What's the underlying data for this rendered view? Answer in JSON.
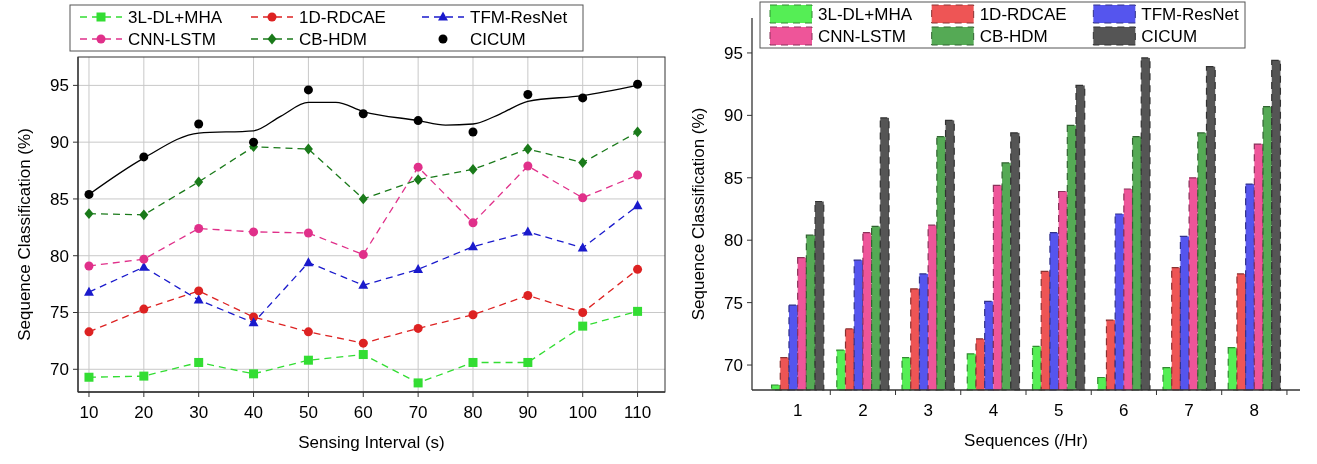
{
  "chart_data": [
    {
      "type": "line",
      "xlabel": "Sensing Interval (s)",
      "ylabel": "Sequence Classification (%)",
      "x": [
        10,
        20,
        30,
        40,
        50,
        60,
        70,
        80,
        90,
        100,
        110
      ],
      "xlim": [
        8,
        115
      ],
      "xticks": [
        10,
        20,
        30,
        40,
        50,
        60,
        70,
        80,
        90,
        100,
        110
      ],
      "ylim": [
        68,
        97.5
      ],
      "yticks": [
        70,
        75,
        80,
        85,
        90,
        95
      ],
      "grid": true,
      "legend": "top",
      "series": [
        {
          "name": "3L-DL+MHA",
          "color": "#33dd33",
          "marker": "square",
          "line_style": "dashed",
          "values": [
            69.3,
            69.4,
            70.6,
            69.6,
            70.8,
            71.3,
            68.8,
            70.6,
            70.6,
            73.8,
            75.1
          ]
        },
        {
          "name": "1D-RDCAE",
          "color": "#dd2222",
          "marker": "circle",
          "line_style": "dashed",
          "values": [
            73.3,
            75.3,
            76.9,
            74.6,
            73.3,
            72.3,
            73.6,
            74.8,
            76.5,
            75.0,
            78.8
          ]
        },
        {
          "name": "TFM-ResNet",
          "color": "#1a1acc",
          "marker": "triangle",
          "line_style": "dashed",
          "values": [
            76.8,
            79.0,
            76.1,
            74.1,
            79.4,
            77.4,
            78.8,
            80.8,
            82.1,
            80.7,
            84.4
          ]
        },
        {
          "name": "CNN-LSTM",
          "color": "#e0308a",
          "marker": "circle",
          "line_style": "dashed",
          "values": [
            79.1,
            79.7,
            82.4,
            82.1,
            82.0,
            80.1,
            87.8,
            82.9,
            87.9,
            85.1,
            87.1
          ]
        },
        {
          "name": "CB-HDM",
          "color": "#1a7a1a",
          "marker": "diamond",
          "line_style": "dashed",
          "values": [
            83.7,
            83.6,
            86.5,
            89.6,
            89.4,
            85.0,
            86.7,
            87.6,
            89.4,
            88.2,
            90.9
          ]
        },
        {
          "name": "CICUM",
          "type": "scatter",
          "color": "#000000",
          "marker": "circle",
          "values": [
            85.4,
            88.7,
            91.6,
            90.0,
            94.6,
            92.5,
            91.9,
            90.9,
            94.2,
            93.9,
            95.1
          ]
        },
        {
          "type": "line",
          "color": "#000000",
          "marker": "none",
          "line_style": "solid",
          "x": [
            10,
            20,
            30,
            40,
            45,
            50,
            55,
            60,
            70,
            75,
            80,
            85,
            90,
            100,
            110
          ],
          "values": [
            85.4,
            88.6,
            90.8,
            91.0,
            92.3,
            93.5,
            93.5,
            92.7,
            91.9,
            91.5,
            91.6,
            92.5,
            93.6,
            94.1,
            95.0
          ]
        }
      ]
    },
    {
      "type": "bar",
      "xlabel": "Sequences (/Hr)",
      "ylabel": "Sequence Classification (%)",
      "categories": [
        "1",
        "2",
        "3",
        "4",
        "5",
        "6",
        "7",
        "8"
      ],
      "ylim": [
        68,
        97.8
      ],
      "yticks": [
        70,
        75,
        80,
        85,
        90,
        95
      ],
      "grid": false,
      "legend": "top",
      "line_style": "dashed",
      "series": [
        {
          "name": "3L-DL+MHA",
          "color": "#55ee55",
          "values": [
            68.4,
            71.2,
            70.6,
            70.9,
            71.5,
            69.0,
            69.8,
            71.4
          ]
        },
        {
          "name": "1D-RDCAE",
          "color": "#ee5555",
          "values": [
            70.6,
            72.9,
            76.1,
            72.1,
            77.5,
            73.6,
            77.8,
            77.3
          ]
        },
        {
          "name": "TFM-ResNet",
          "color": "#5555ee",
          "values": [
            74.8,
            78.4,
            77.3,
            75.1,
            80.6,
            82.1,
            80.3,
            84.5
          ]
        },
        {
          "name": "CNN-LSTM",
          "color": "#ee5599",
          "values": [
            78.6,
            80.6,
            81.2,
            84.4,
            83.9,
            84.1,
            85.0,
            87.7
          ]
        },
        {
          "name": "CB-HDM",
          "color": "#55aa55",
          "values": [
            80.4,
            81.1,
            88.3,
            86.2,
            89.2,
            88.3,
            88.6,
            90.7
          ]
        },
        {
          "name": "CICUM",
          "color": "#555555",
          "values": [
            83.1,
            89.8,
            89.6,
            88.6,
            92.4,
            94.6,
            93.9,
            94.4
          ]
        }
      ]
    }
  ]
}
